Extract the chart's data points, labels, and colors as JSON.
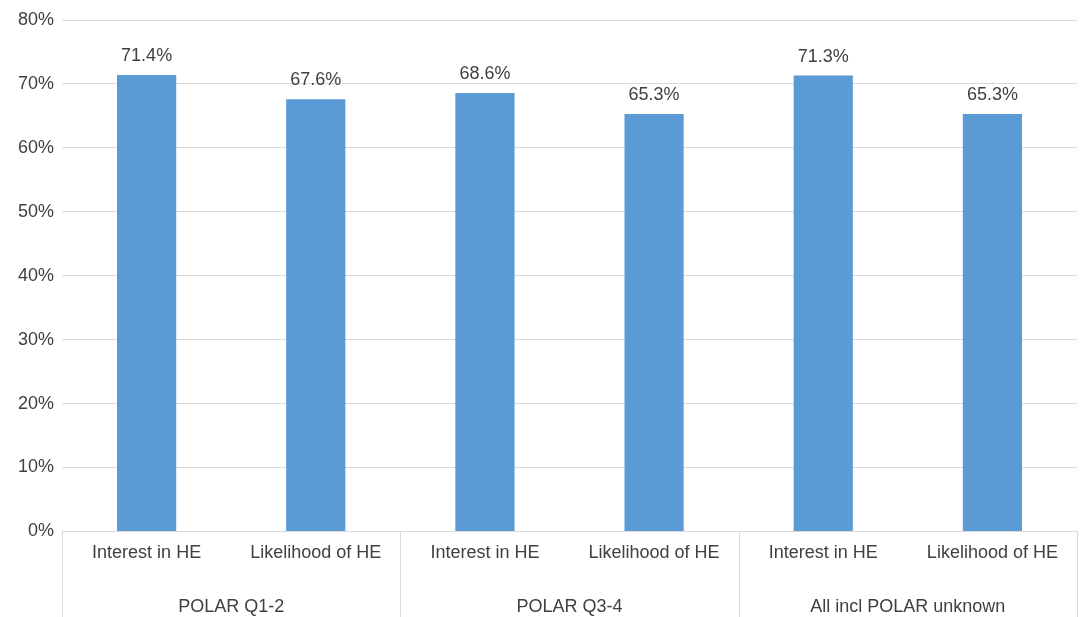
{
  "chart_data": {
    "type": "bar",
    "categories": [
      "Interest in HE",
      "Likelihood of HE",
      "Interest in HE",
      "Likelihood of HE",
      "Interest in HE",
      "Likelihood of HE"
    ],
    "values": [
      71.4,
      67.6,
      68.6,
      65.3,
      71.3,
      65.3
    ],
    "value_labels": [
      "71.4%",
      "67.6%",
      "68.6%",
      "65.3%",
      "71.3%",
      "65.3%"
    ],
    "color": "#5b9bd5",
    "ylim": [
      0,
      80
    ],
    "yticks": [
      {
        "value": 0,
        "label": "0%"
      },
      {
        "value": 10,
        "label": "10%"
      },
      {
        "value": 20,
        "label": "20%"
      },
      {
        "value": 30,
        "label": "30%"
      },
      {
        "value": 40,
        "label": "40%"
      },
      {
        "value": 50,
        "label": "50%"
      },
      {
        "value": 60,
        "label": "60%"
      },
      {
        "value": 70,
        "label": "70%"
      },
      {
        "value": 80,
        "label": "80%"
      }
    ],
    "grid": "y",
    "legend": false,
    "annotations": [
      "POLAR Q1-2",
      "POLAR Q3-4",
      "All incl POLAR unknown"
    ]
  }
}
